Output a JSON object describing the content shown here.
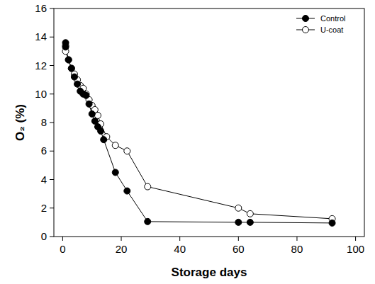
{
  "chart_data": {
    "type": "line",
    "x_label": "Storage days",
    "y_label": "O₂ (%)",
    "xlim": [
      -3,
      103
    ],
    "xticks": [
      0,
      20,
      40,
      60,
      80,
      100
    ],
    "ylim": [
      0,
      16
    ],
    "yticks": [
      0,
      2,
      4,
      6,
      8,
      10,
      12,
      14,
      16
    ],
    "grid": false,
    "legend": "upper right",
    "series": [
      {
        "name": "Control",
        "color": "#000000",
        "marker": "filled_circle",
        "line_style": "solid",
        "x": [
          1,
          1,
          2,
          3,
          4,
          5,
          6,
          7,
          8,
          9,
          10,
          11,
          12,
          13,
          14,
          18,
          22,
          29,
          60,
          64,
          92
        ],
        "values": [
          13.6,
          13.3,
          12.4,
          11.8,
          11.2,
          10.7,
          10.2,
          10.0,
          9.9,
          9.3,
          8.6,
          8.1,
          7.7,
          7.4,
          6.8,
          4.5,
          3.2,
          1.05,
          1.0,
          1.0,
          0.95
        ]
      },
      {
        "name": "U-coat",
        "color": "#000000",
        "marker": "open_circle",
        "line_style": "solid",
        "x": [
          1,
          1,
          2,
          3,
          4,
          5,
          6,
          7,
          8,
          9,
          10,
          11,
          12,
          13,
          15,
          18,
          22,
          29,
          60,
          64,
          92
        ],
        "values": [
          13.4,
          13.0,
          12.4,
          11.8,
          11.4,
          11.0,
          10.6,
          10.4,
          10.0,
          9.6,
          9.2,
          8.9,
          8.5,
          7.9,
          7.0,
          6.4,
          6.0,
          3.5,
          2.0,
          1.6,
          1.25
        ]
      }
    ]
  }
}
